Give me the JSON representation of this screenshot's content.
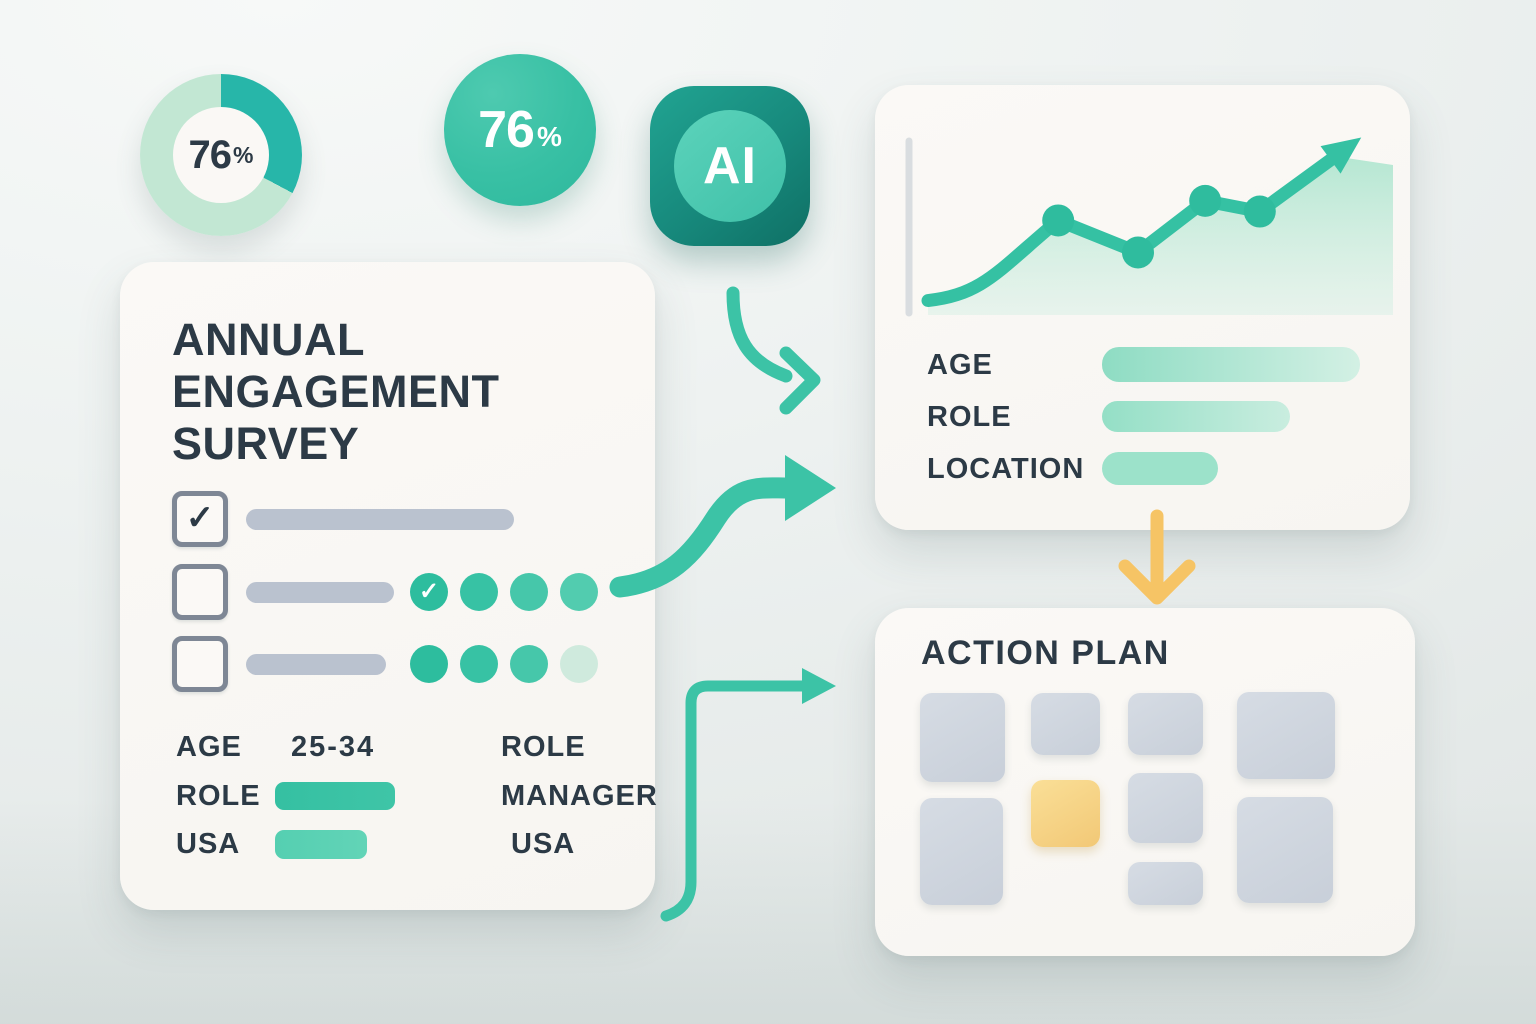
{
  "palette": {
    "teal": "#35c1a3",
    "teal_dark": "#17897c",
    "mint": "#c2e7d3",
    "ink": "#2c3a46",
    "gray_bar": "#bac2cf",
    "tile_gray": "#ccd3dd",
    "highlight_yellow": "#f6c465",
    "card_bg": "#f9f7f4"
  },
  "icons": {
    "check": "✓"
  },
  "donut": {
    "value": "76",
    "unit": "%"
  },
  "badge": {
    "value": "76",
    "unit": "%"
  },
  "ai": {
    "label": "AI"
  },
  "survey": {
    "title_lines": [
      "ANNUAL",
      "ENGAGEMENT",
      "SURVEY"
    ],
    "checklist": [
      {
        "checked": true,
        "rating_dots": 0
      },
      {
        "checked": false,
        "rating_dots": 4,
        "first_dot_checked": true
      },
      {
        "checked": false,
        "rating_dots": 4,
        "last_dot_faded": true
      }
    ],
    "demographics": {
      "rows": [
        {
          "label": "AGE",
          "value": "25-34",
          "right": "ROLE"
        },
        {
          "label": "ROLE",
          "value": "",
          "right": "MANAGER"
        },
        {
          "label": "USA",
          "value": "",
          "right": "USA"
        }
      ]
    }
  },
  "insights": {
    "rows": [
      {
        "label": "AGE"
      },
      {
        "label": "ROLE"
      },
      {
        "label": "LOCATION"
      }
    ]
  },
  "action": {
    "title": "ACTION PLAN"
  },
  "chart_data": {
    "type": "line",
    "title": "",
    "x_pct": [
      0,
      31,
      50,
      66,
      79,
      97
    ],
    "y_pct": [
      7,
      52,
      34,
      63,
      57,
      88
    ],
    "marker_indices": [
      1,
      2,
      3,
      4
    ],
    "arrow_end": true,
    "grid": false,
    "note": "decorative upward engagement trend, no axis labels"
  }
}
